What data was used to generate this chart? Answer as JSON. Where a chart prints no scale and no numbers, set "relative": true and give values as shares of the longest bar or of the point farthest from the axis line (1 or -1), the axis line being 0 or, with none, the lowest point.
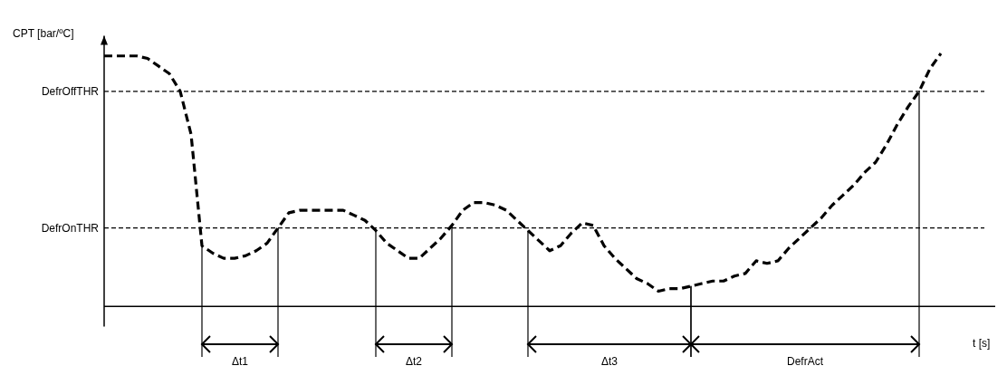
{
  "chart_data": {
    "type": "line",
    "relative": true,
    "ylabel": "CPT [bar/ºC]",
    "xlabel": "t [s]",
    "line_style": "dashed",
    "marker": "none",
    "legend": false,
    "grid": false,
    "categories": [
      null,
      null,
      null,
      null,
      null,
      null,
      null,
      null,
      null,
      null,
      null,
      null,
      null,
      null,
      null,
      null,
      null,
      null,
      null,
      null,
      null,
      null,
      null,
      null,
      null,
      null,
      null,
      null,
      null,
      null,
      null,
      null,
      null,
      null,
      null,
      null,
      null,
      null,
      null,
      null,
      null,
      null,
      null,
      null,
      null,
      null,
      null,
      null,
      null,
      null,
      null,
      null,
      null,
      null,
      null,
      null,
      null,
      null,
      null,
      null,
      null,
      null,
      null,
      null,
      null,
      null,
      null,
      null,
      null,
      null,
      null,
      null,
      null,
      null,
      null,
      null,
      null,
      null
    ],
    "series": [
      {
        "color": "#000000",
        "values": [
          0.99,
          0.99,
          0.99,
          0.99,
          0.98,
          0.95,
          0.92,
          0.85,
          0.68,
          0.24,
          0.21,
          0.19,
          0.19,
          0.2,
          0.22,
          0.25,
          0.31,
          0.37,
          0.38,
          0.38,
          0.38,
          0.38,
          0.38,
          0.36,
          0.34,
          0.3,
          0.25,
          0.22,
          0.19,
          0.19,
          0.23,
          0.27,
          0.32,
          0.38,
          0.41,
          0.41,
          0.4,
          0.38,
          0.34,
          0.3,
          0.26,
          0.22,
          0.24,
          0.29,
          0.33,
          0.32,
          0.24,
          0.19,
          0.15,
          0.11,
          0.09,
          0.06,
          0.07,
          0.07,
          0.08,
          0.09,
          0.1,
          0.1,
          0.12,
          0.13,
          0.18,
          0.17,
          0.18,
          0.23,
          0.27,
          0.31,
          0.35,
          0.4,
          0.44,
          0.48,
          0.53,
          0.57,
          0.64,
          0.72,
          0.79,
          0.85,
          0.94,
          1.0
        ]
      }
    ],
    "ref_lines": [
      {
        "axis": "y",
        "value": 0.85,
        "label": "DefrOffTHR",
        "line_style": "dashed"
      },
      {
        "axis": "y",
        "value": 0.31,
        "label": "DefrOnTHR",
        "line_style": "dashed"
      }
    ],
    "annotations": [
      "Δt1",
      "Δt2",
      "Δt3",
      "DefrAct"
    ]
  }
}
